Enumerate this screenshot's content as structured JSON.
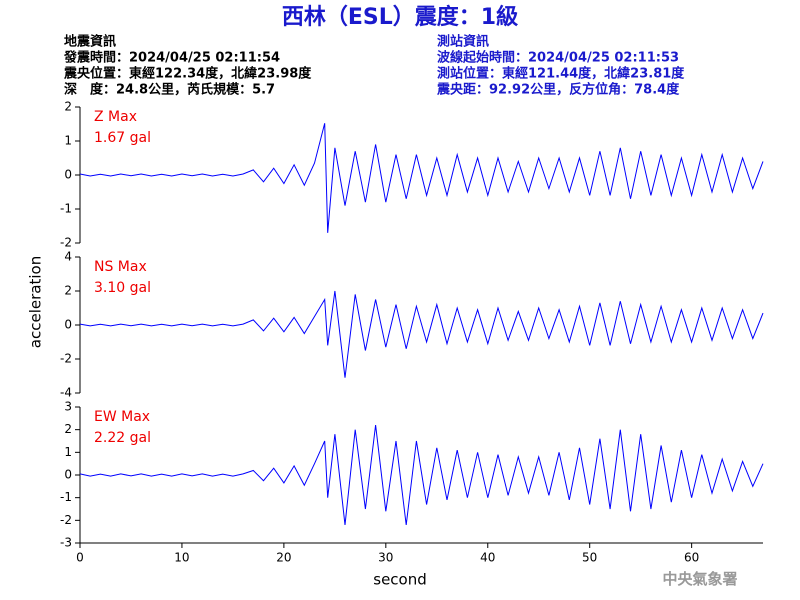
{
  "header": {
    "title": "西林（ESL）震度：1級",
    "quake_info": [
      "地震資訊",
      "發震時間：2024/04/25 02:11:54",
      "震央位置：東經122.34度，北緯23.98度",
      "深　度：24.8公里，芮氏規模：5.7"
    ],
    "station_info": [
      "測站資訊",
      "波線起始時間：2024/04/25 02:11:53",
      "測站位置：東經121.44度，北緯23.81度",
      "震央距：92.92公里，反方位角：78.4度"
    ],
    "ylabel": "acceleration",
    "xlabel": "second",
    "footer": "中央氣象署"
  },
  "chart_data": [
    {
      "type": "line",
      "annotations": [
        "Z Max",
        "1.67 gal"
      ],
      "color": "#0000ff",
      "xlim": [
        0,
        67
      ],
      "ylim": [
        -2,
        2
      ],
      "yticks": [
        -2,
        -1,
        0,
        1,
        2
      ],
      "x": [
        0,
        1,
        2,
        3,
        4,
        5,
        6,
        7,
        8,
        9,
        10,
        11,
        12,
        13,
        14,
        15,
        16,
        17,
        18,
        19,
        20,
        21,
        22,
        23,
        24,
        24.3,
        25,
        26,
        27,
        28,
        29,
        30,
        31,
        32,
        33,
        34,
        35,
        36,
        37,
        38,
        39,
        40,
        41,
        42,
        43,
        44,
        45,
        46,
        47,
        48,
        49,
        50,
        51,
        52,
        53,
        54,
        55,
        56,
        57,
        58,
        59,
        60,
        61,
        62,
        63,
        64,
        65,
        66,
        67
      ],
      "values": [
        0.03,
        -0.03,
        0.02,
        -0.03,
        0.03,
        -0.02,
        0.03,
        -0.03,
        0.02,
        -0.03,
        0.03,
        -0.02,
        0.03,
        -0.03,
        0.02,
        -0.03,
        0.03,
        0.15,
        -0.2,
        0.2,
        -0.25,
        0.3,
        -0.3,
        0.35,
        1.52,
        -1.7,
        0.8,
        -0.9,
        0.7,
        -0.8,
        0.9,
        -0.8,
        0.6,
        -0.7,
        0.6,
        -0.6,
        0.5,
        -0.6,
        0.6,
        -0.5,
        0.5,
        -0.6,
        0.5,
        -0.5,
        0.4,
        -0.5,
        0.5,
        -0.4,
        0.5,
        -0.5,
        0.5,
        -0.6,
        0.7,
        -0.6,
        0.8,
        -0.7,
        0.7,
        -0.6,
        0.6,
        -0.6,
        0.5,
        -0.6,
        0.6,
        -0.5,
        0.6,
        -0.5,
        0.5,
        -0.4,
        0.4
      ]
    },
    {
      "type": "line",
      "annotations": [
        "NS Max",
        "3.10 gal"
      ],
      "color": "#0000ff",
      "xlim": [
        0,
        67
      ],
      "ylim": [
        -4,
        4
      ],
      "yticks": [
        -4,
        -2,
        0,
        2,
        4
      ],
      "x": [
        0,
        1,
        2,
        3,
        4,
        5,
        6,
        7,
        8,
        9,
        10,
        11,
        12,
        13,
        14,
        15,
        16,
        17,
        18,
        19,
        20,
        21,
        22,
        23,
        24,
        24.3,
        25,
        26,
        27,
        28,
        29,
        30,
        31,
        32,
        33,
        34,
        35,
        36,
        37,
        38,
        39,
        40,
        41,
        42,
        43,
        44,
        45,
        46,
        47,
        48,
        49,
        50,
        51,
        52,
        53,
        54,
        55,
        56,
        57,
        58,
        59,
        60,
        61,
        62,
        63,
        64,
        65,
        66,
        67
      ],
      "values": [
        0.05,
        -0.05,
        0.04,
        -0.05,
        0.05,
        -0.04,
        0.05,
        -0.05,
        0.04,
        -0.05,
        0.05,
        -0.04,
        0.05,
        -0.05,
        0.04,
        -0.05,
        0.05,
        0.3,
        -0.35,
        0.4,
        -0.4,
        0.45,
        -0.5,
        0.5,
        1.5,
        -1.2,
        2.0,
        -3.1,
        1.8,
        -1.5,
        1.5,
        -1.3,
        1.2,
        -1.4,
        1.1,
        -1.0,
        1.2,
        -1.1,
        1.0,
        -1.0,
        0.9,
        -1.1,
        1.0,
        -0.9,
        0.8,
        -0.9,
        1.0,
        -0.8,
        0.9,
        -1.0,
        1.1,
        -1.2,
        1.3,
        -1.2,
        1.4,
        -1.1,
        1.2,
        -1.0,
        1.1,
        -1.0,
        0.9,
        -1.0,
        1.0,
        -0.9,
        1.0,
        -0.8,
        0.9,
        -0.8,
        0.7
      ]
    },
    {
      "type": "line",
      "annotations": [
        "EW Max",
        "2.22 gal"
      ],
      "color": "#0000ff",
      "xlim": [
        0,
        67
      ],
      "ylim": [
        -3,
        3
      ],
      "yticks": [
        -3,
        -2,
        -1,
        0,
        1,
        2,
        3
      ],
      "xticks": [
        0,
        10,
        20,
        30,
        40,
        50,
        60
      ],
      "x": [
        0,
        1,
        2,
        3,
        4,
        5,
        6,
        7,
        8,
        9,
        10,
        11,
        12,
        13,
        14,
        15,
        16,
        17,
        18,
        19,
        20,
        21,
        22,
        23,
        24,
        24.3,
        25,
        26,
        27,
        28,
        29,
        30,
        31,
        32,
        33,
        34,
        35,
        36,
        37,
        38,
        39,
        40,
        41,
        42,
        43,
        44,
        45,
        46,
        47,
        48,
        49,
        50,
        51,
        52,
        53,
        54,
        55,
        56,
        57,
        58,
        59,
        60,
        61,
        62,
        63,
        64,
        65,
        66,
        67
      ],
      "values": [
        0.05,
        -0.05,
        0.04,
        -0.05,
        0.05,
        -0.04,
        0.05,
        -0.05,
        0.04,
        -0.05,
        0.05,
        -0.04,
        0.05,
        -0.05,
        0.04,
        -0.05,
        0.05,
        0.2,
        -0.25,
        0.3,
        -0.35,
        0.4,
        -0.45,
        0.5,
        1.5,
        -1.0,
        1.8,
        -2.2,
        2.0,
        -1.5,
        2.2,
        -1.6,
        1.5,
        -2.2,
        1.5,
        -1.3,
        1.2,
        -1.1,
        1.1,
        -1.0,
        1.0,
        -1.0,
        0.9,
        -0.9,
        0.8,
        -0.8,
        0.8,
        -0.9,
        1.0,
        -1.1,
        1.2,
        -1.3,
        1.6,
        -1.5,
        2.0,
        -1.6,
        1.8,
        -1.5,
        1.3,
        -1.2,
        1.1,
        -1.0,
        0.9,
        -0.8,
        0.7,
        -0.7,
        0.6,
        -0.5,
        0.5
      ]
    }
  ]
}
